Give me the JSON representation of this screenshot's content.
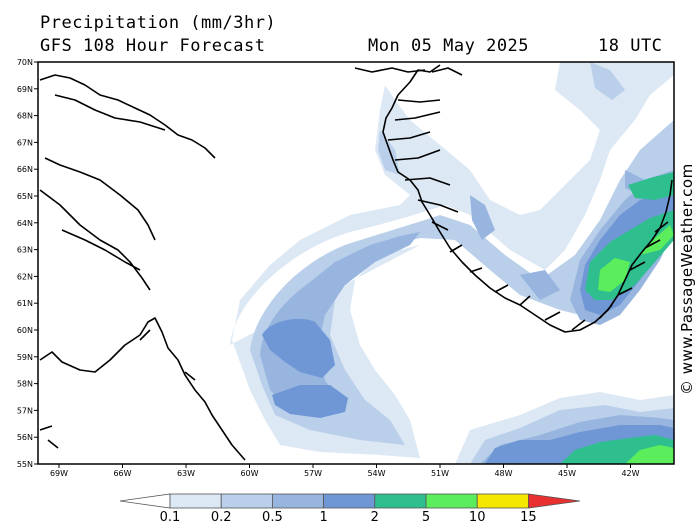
{
  "header": {
    "title": "Precipitation (mm/3hr)",
    "model": "GFS 108 Hour Forecast",
    "date": "Mon 05 May 2025",
    "time": "18 UTC"
  },
  "lat_labels": [
    "70N",
    "69N",
    "68N",
    "67N",
    "66N",
    "65N",
    "64N",
    "63N",
    "62N",
    "61N",
    "60N",
    "59N",
    "58N",
    "57N",
    "56N",
    "55N"
  ],
  "lon_labels": [
    "69W",
    "66W",
    "63W",
    "60W",
    "57W",
    "54W",
    "51W",
    "48W",
    "45W",
    "42W"
  ],
  "legend": {
    "values": [
      "0.1",
      "0.2",
      "0.5",
      "1",
      "2",
      "5",
      "10",
      "15"
    ],
    "colors": [
      "#dde8f5",
      "#b9cfea",
      "#97b5df",
      "#6f97d6",
      "#2fbf8f",
      "#5ced5c",
      "#f4e700",
      "#f59a00",
      "#e83030"
    ]
  },
  "credit": "© www.PassageWeather.com"
}
